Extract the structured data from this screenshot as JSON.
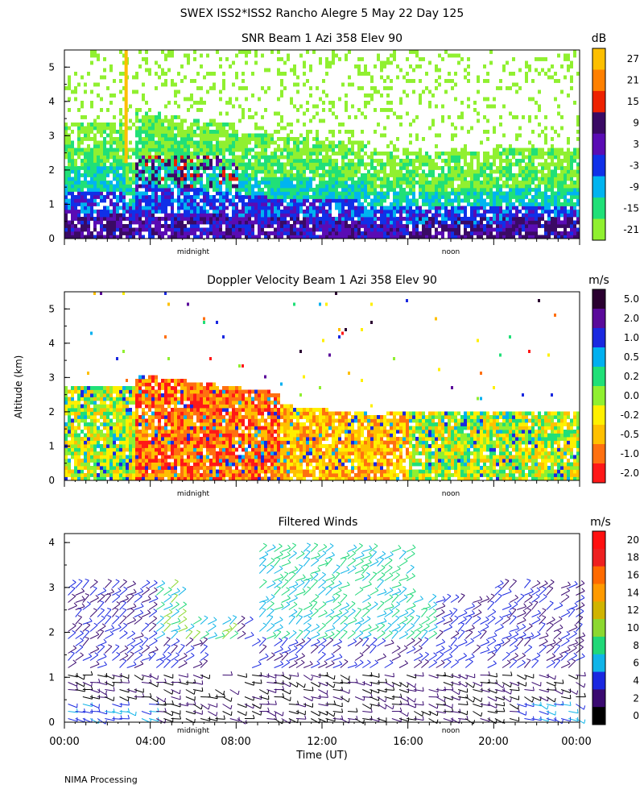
{
  "title": "SWEX ISS2*ISS2 Rancho Alegre   5 May 22 Day 125",
  "footer": "NIMA Processing",
  "y_axis_label": "Altitude (km)",
  "x_axis_label": "Time (UT)",
  "x_ticks": [
    "00:00",
    "04:00",
    "08:00",
    "12:00",
    "16:00",
    "20:00",
    "00:00"
  ],
  "panel_markers": [
    "midnight",
    "noon"
  ],
  "chart_data": [
    {
      "type": "heatmap",
      "title": "SNR Beam 1 Azi 358 Elev 90",
      "xlabel": "Time (UT)",
      "ylabel": "Altitude (km)",
      "xlim": [
        0,
        24
      ],
      "ylim": [
        0,
        5.5
      ],
      "y_ticks": [
        "0",
        "1",
        "2",
        "3",
        "4",
        "5"
      ],
      "colorbar": {
        "unit": "dB",
        "labels": [
          "27",
          "21",
          "15",
          "9",
          "3",
          "-3",
          "-9",
          "-15",
          "-21"
        ],
        "colors": [
          "#fdbf00",
          "#ff8000",
          "#ee2200",
          "#3a0a64",
          "#5a0cb4",
          "#1030e8",
          "#00b4f0",
          "#20e078",
          "#90f030"
        ]
      }
    },
    {
      "type": "heatmap",
      "title": "Doppler Velocity Beam 1 Azi 358 Elev 90",
      "xlabel": "Time (UT)",
      "ylabel": "Altitude (km)",
      "xlim": [
        0,
        24
      ],
      "ylim": [
        0,
        5.5
      ],
      "y_ticks": [
        "0",
        "1",
        "2",
        "3",
        "4",
        "5"
      ],
      "colorbar": {
        "unit": "m/s",
        "labels": [
          "5.0",
          "2.0",
          "1.0",
          "0.5",
          "0.2",
          "0.0",
          "-0.2",
          "-0.5",
          "-1.0",
          "-2.0"
        ],
        "colors": [
          "#2a0030",
          "#5a0a9a",
          "#1a28e0",
          "#00b0f0",
          "#20e078",
          "#90f030",
          "#fff000",
          "#ffc000",
          "#ff7010",
          "#ff1818"
        ]
      }
    },
    {
      "type": "wind_barbs",
      "title": "Filtered Winds",
      "xlabel": "Time (UT)",
      "ylabel": "Altitude (km)",
      "xlim": [
        0,
        24
      ],
      "ylim": [
        0,
        4.2
      ],
      "y_ticks": [
        "0",
        "1",
        "2",
        "3",
        "4"
      ],
      "colorbar": {
        "unit": "m/s",
        "labels": [
          "20",
          "18",
          "16",
          "14",
          "12",
          "10",
          "8",
          "6",
          "4",
          "2",
          "0"
        ],
        "colors": [
          "#ff1010",
          "#ee2020",
          "#ff6a00",
          "#ff9a00",
          "#d0b400",
          "#8cd830",
          "#20d878",
          "#10b4e8",
          "#1a28e0",
          "#3a0a70",
          "#000000"
        ]
      }
    }
  ]
}
